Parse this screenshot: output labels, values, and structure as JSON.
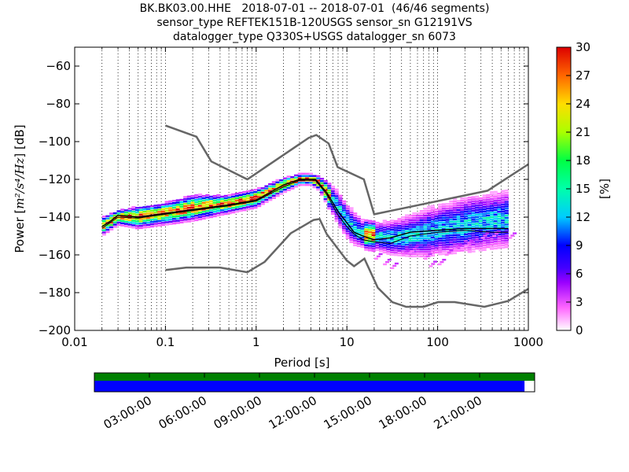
{
  "header": {
    "title_line1": "BK.BK03.00.HHE   2018-07-01 -- 2018-07-01  (46/46 segments)",
    "title_line2": "sensor_type REFTEK151B-120USGS sensor_sn G12191VS",
    "title_line3": "datalogger_type Q330S+USGS datalogger_sn 6073"
  },
  "chart_data": {
    "type": "heatmap",
    "xlabel": "Period [s]",
    "ylabel_prefix": "Power [",
    "ylabel_unit": "m²/s⁴/Hz",
    "ylabel_suffix": "] [dB]",
    "xscale": "log",
    "xlim": [
      0.01,
      1000
    ],
    "ylim": [
      -200,
      -50
    ],
    "x_ticks": [
      0.01,
      0.1,
      1,
      10,
      100,
      1000
    ],
    "x_tick_labels": [
      "0.01",
      "0.1",
      "1",
      "10",
      "100",
      "1000"
    ],
    "y_ticks": [
      -200,
      -180,
      -160,
      -140,
      -120,
      -100,
      -80,
      -60
    ],
    "y_tick_labels": [
      "−200",
      "−180",
      "−160",
      "−140",
      "−120",
      "−100",
      "−80",
      "−60"
    ],
    "grid": "dotted vertical at minor decades",
    "colorbar": {
      "label": "[%]",
      "range": [
        0,
        30
      ],
      "ticks": [
        0,
        3,
        6,
        9,
        12,
        15,
        18,
        21,
        24,
        27,
        30
      ],
      "tick_labels": [
        "0",
        "3",
        "6",
        "9",
        "12",
        "15",
        "18",
        "21",
        "24",
        "27",
        "30"
      ]
    },
    "noise_model_high": [
      [
        0.1,
        -91.5
      ],
      [
        0.22,
        -97.4
      ],
      [
        0.32,
        -110.5
      ],
      [
        0.8,
        -120
      ],
      [
        3.8,
        -98
      ],
      [
        4.6,
        -96.5
      ],
      [
        6.3,
        -101
      ],
      [
        7.9,
        -113.5
      ],
      [
        15.4,
        -120
      ],
      [
        20,
        -138.5
      ],
      [
        354.8,
        -126
      ],
      [
        1000,
        -112
      ]
    ],
    "noise_model_low": [
      [
        0.1,
        -168
      ],
      [
        0.17,
        -166.7
      ],
      [
        0.4,
        -166.7
      ],
      [
        0.8,
        -169.2
      ],
      [
        1.24,
        -163.7
      ],
      [
        2.4,
        -148.6
      ],
      [
        4.3,
        -141.5
      ],
      [
        5,
        -141
      ],
      [
        6,
        -149
      ],
      [
        10,
        -163
      ],
      [
        12,
        -166
      ],
      [
        15.6,
        -162
      ],
      [
        21.9,
        -177.4
      ],
      [
        31.6,
        -185
      ],
      [
        45,
        -187.5
      ],
      [
        70,
        -187.5
      ],
      [
        101,
        -185
      ],
      [
        154,
        -185
      ],
      [
        328,
        -187.5
      ],
      [
        600,
        -184.4
      ],
      [
        1000,
        -178
      ]
    ],
    "statistic_curves": {
      "mean": [
        [
          0.02,
          -145
        ],
        [
          0.025,
          -142
        ],
        [
          0.03,
          -139
        ],
        [
          0.05,
          -140
        ],
        [
          0.1,
          -138
        ],
        [
          0.2,
          -136
        ],
        [
          0.5,
          -133.5
        ],
        [
          1,
          -131
        ],
        [
          2,
          -123
        ],
        [
          3,
          -120
        ],
        [
          4.5,
          -120
        ],
        [
          6,
          -127
        ],
        [
          8,
          -137
        ],
        [
          10,
          -143
        ],
        [
          12,
          -148
        ],
        [
          15,
          -150
        ],
        [
          20,
          -152
        ],
        [
          30,
          -151
        ],
        [
          50,
          -148
        ],
        [
          100,
          -147
        ],
        [
          200,
          -146
        ],
        [
          400,
          -146
        ],
        [
          600,
          -146
        ]
      ],
      "median": [
        [
          0.02,
          -146
        ],
        [
          0.03,
          -140
        ],
        [
          0.05,
          -140.5
        ],
        [
          0.1,
          -138.5
        ],
        [
          0.2,
          -136.5
        ],
        [
          0.5,
          -134
        ],
        [
          1,
          -131.5
        ],
        [
          2,
          -124
        ],
        [
          3,
          -120.5
        ],
        [
          4.5,
          -120.5
        ],
        [
          6,
          -128
        ],
        [
          8,
          -139
        ],
        [
          10,
          -145
        ],
        [
          12,
          -149
        ],
        [
          15,
          -152
        ],
        [
          20,
          -153
        ],
        [
          30,
          -154
        ],
        [
          50,
          -150
        ],
        [
          100,
          -148
        ],
        [
          200,
          -147
        ],
        [
          400,
          -148
        ],
        [
          600,
          -148
        ]
      ]
    },
    "psd_band": [
      [
        0.02,
        -145,
        5
      ],
      [
        0.03,
        -140,
        4
      ],
      [
        0.05,
        -140,
        6
      ],
      [
        0.1,
        -138,
        6
      ],
      [
        0.2,
        -135,
        7
      ],
      [
        0.5,
        -133,
        5
      ],
      [
        1,
        -130,
        5
      ],
      [
        2,
        -123,
        4
      ],
      [
        3,
        -120,
        3
      ],
      [
        4,
        -120,
        3
      ],
      [
        5,
        -122,
        4
      ],
      [
        6,
        -127,
        6
      ],
      [
        8,
        -135,
        10
      ],
      [
        10,
        -142,
        10
      ],
      [
        12,
        -146,
        10
      ],
      [
        15,
        -149,
        8
      ],
      [
        20,
        -150,
        8
      ],
      [
        30,
        -151,
        10
      ],
      [
        50,
        -150,
        12
      ],
      [
        80,
        -148,
        14
      ],
      [
        100,
        -147,
        14
      ],
      [
        200,
        -144,
        16
      ],
      [
        400,
        -142,
        16
      ],
      [
        600,
        -141,
        16
      ]
    ],
    "psd_outliers": [
      [
        20,
        -162
      ],
      [
        25,
        -165
      ],
      [
        30,
        -167
      ],
      [
        40,
        -160
      ],
      [
        50,
        -158
      ],
      [
        70,
        -162
      ],
      [
        80,
        -166
      ],
      [
        100,
        -165
      ],
      [
        120,
        -160
      ],
      [
        150,
        -157
      ],
      [
        200,
        -155
      ],
      [
        300,
        -151
      ],
      [
        400,
        -150
      ],
      [
        600,
        -151
      ]
    ]
  },
  "timeline": {
    "tick_labels": [
      "03:00:00",
      "06:00:00",
      "09:00:00",
      "12:00:00",
      "15:00:00",
      "18:00:00",
      "21:00:00"
    ],
    "tick_hours": [
      3,
      6,
      9,
      12,
      15,
      18,
      21
    ],
    "hours_total": 24,
    "coverage_fraction": 0.977,
    "colors": {
      "segments": "#008000",
      "data": "#0000ff",
      "gap": "#ffffff"
    }
  },
  "colors": {
    "noise_model": "#666666",
    "mean": "#000000",
    "median": "#000000"
  }
}
